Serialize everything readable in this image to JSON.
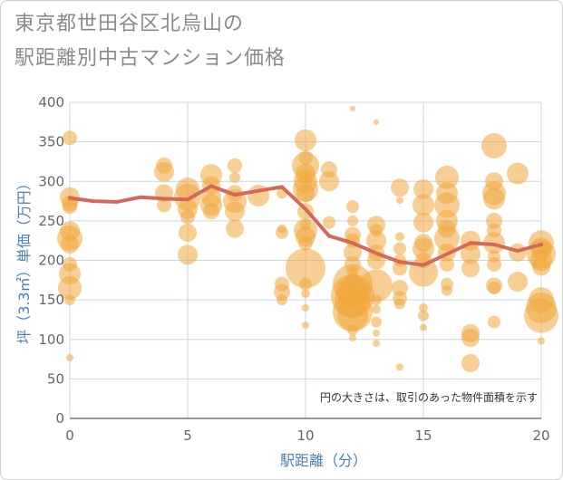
{
  "title_line1": "東京都世田谷区北烏山の",
  "title_line2": "駅距離別中古マンション価格",
  "note": "円の大きさは、取引のあった物件面積を示す",
  "colors": {
    "bubble": "#f0a73c",
    "line": "#d4695a",
    "grid": "#c9d7e6",
    "axis_label": "#4a7fb5"
  },
  "chart_data": {
    "type": "scatter",
    "xlabel": "駅距離（分）",
    "ylabel": "坪（3.3㎡）単価（万円）",
    "xlim": [
      0,
      20
    ],
    "ylim": [
      0,
      400
    ],
    "xticks": [
      0,
      5,
      10,
      15,
      20
    ],
    "yticks": [
      0,
      50,
      100,
      150,
      200,
      250,
      300,
      350,
      400
    ],
    "bubbles": [
      [
        0,
        355,
        8
      ],
      [
        0,
        280,
        11
      ],
      [
        0,
        272,
        9
      ],
      [
        0,
        268,
        8
      ],
      [
        0,
        237,
        11
      ],
      [
        0,
        228,
        14
      ],
      [
        0,
        220,
        10
      ],
      [
        0,
        195,
        8
      ],
      [
        0,
        183,
        12
      ],
      [
        0,
        165,
        13
      ],
      [
        0,
        150,
        6
      ],
      [
        0,
        77,
        4
      ],
      [
        4,
        320,
        9
      ],
      [
        4,
        312,
        11
      ],
      [
        4,
        285,
        10
      ],
      [
        4,
        270,
        8
      ],
      [
        5,
        290,
        13
      ],
      [
        5,
        280,
        15
      ],
      [
        5,
        265,
        11
      ],
      [
        5,
        255,
        8
      ],
      [
        5,
        235,
        10
      ],
      [
        5,
        207,
        11
      ],
      [
        6,
        308,
        12
      ],
      [
        6,
        295,
        10
      ],
      [
        6,
        280,
        11
      ],
      [
        6,
        270,
        12
      ],
      [
        6,
        262,
        9
      ],
      [
        7,
        320,
        8
      ],
      [
        7,
        305,
        6
      ],
      [
        7,
        285,
        9
      ],
      [
        7,
        275,
        13
      ],
      [
        7,
        262,
        11
      ],
      [
        7,
        240,
        10
      ],
      [
        8,
        282,
        12
      ],
      [
        9,
        285,
        6
      ],
      [
        9,
        240,
        5
      ],
      [
        9,
        235,
        7
      ],
      [
        9,
        170,
        8
      ],
      [
        9,
        160,
        9
      ],
      [
        9,
        150,
        6
      ],
      [
        10,
        352,
        12
      ],
      [
        10,
        330,
        8
      ],
      [
        10,
        320,
        15
      ],
      [
        10,
        310,
        11
      ],
      [
        10,
        300,
        13
      ],
      [
        10,
        290,
        14
      ],
      [
        10,
        285,
        10
      ],
      [
        10,
        262,
        9
      ],
      [
        10,
        245,
        6
      ],
      [
        10,
        238,
        13
      ],
      [
        10,
        230,
        11
      ],
      [
        10,
        222,
        8
      ],
      [
        10,
        190,
        22
      ],
      [
        10,
        170,
        7
      ],
      [
        10,
        158,
        5
      ],
      [
        10,
        140,
        4
      ],
      [
        10,
        118,
        4
      ],
      [
        11,
        315,
        9
      ],
      [
        11,
        300,
        11
      ],
      [
        11,
        248,
        7
      ],
      [
        12,
        392,
        3
      ],
      [
        12,
        268,
        7
      ],
      [
        12,
        250,
        6
      ],
      [
        12,
        232,
        9
      ],
      [
        12,
        225,
        8
      ],
      [
        12,
        210,
        10
      ],
      [
        12,
        195,
        9
      ],
      [
        12,
        185,
        6
      ],
      [
        12,
        175,
        8
      ],
      [
        12,
        170,
        22
      ],
      [
        12,
        160,
        18
      ],
      [
        12,
        155,
        24
      ],
      [
        12,
        150,
        20
      ],
      [
        12,
        135,
        22
      ],
      [
        12,
        130,
        17
      ],
      [
        12,
        112,
        6
      ],
      [
        12,
        102,
        4
      ],
      [
        13,
        375,
        3
      ],
      [
        13,
        245,
        10
      ],
      [
        13,
        238,
        7
      ],
      [
        13,
        225,
        11
      ],
      [
        13,
        210,
        9
      ],
      [
        13,
        200,
        10
      ],
      [
        13,
        168,
        18
      ],
      [
        13,
        150,
        6
      ],
      [
        13,
        138,
        5
      ],
      [
        13,
        122,
        6
      ],
      [
        13,
        108,
        4
      ],
      [
        13,
        95,
        4
      ],
      [
        14,
        292,
        10
      ],
      [
        14,
        276,
        4
      ],
      [
        14,
        230,
        5
      ],
      [
        14,
        215,
        7
      ],
      [
        14,
        200,
        7
      ],
      [
        14,
        190,
        8
      ],
      [
        14,
        165,
        9
      ],
      [
        14,
        152,
        8
      ],
      [
        14,
        145,
        6
      ],
      [
        14,
        65,
        4
      ],
      [
        15,
        290,
        11
      ],
      [
        15,
        270,
        12
      ],
      [
        15,
        248,
        11
      ],
      [
        15,
        222,
        10
      ],
      [
        15,
        215,
        12
      ],
      [
        15,
        200,
        9
      ],
      [
        15,
        185,
        16
      ],
      [
        15,
        140,
        5
      ],
      [
        15,
        130,
        6
      ],
      [
        15,
        115,
        4
      ],
      [
        16,
        305,
        13
      ],
      [
        16,
        285,
        12
      ],
      [
        16,
        270,
        14
      ],
      [
        16,
        250,
        12
      ],
      [
        16,
        240,
        10
      ],
      [
        16,
        228,
        14
      ],
      [
        16,
        210,
        10
      ],
      [
        16,
        195,
        8
      ],
      [
        16,
        170,
        7
      ],
      [
        16,
        162,
        6
      ],
      [
        17,
        225,
        11
      ],
      [
        17,
        208,
        11
      ],
      [
        17,
        190,
        10
      ],
      [
        17,
        108,
        10
      ],
      [
        17,
        102,
        10
      ],
      [
        17,
        70,
        10
      ],
      [
        18,
        345,
        14
      ],
      [
        18,
        300,
        10
      ],
      [
        18,
        285,
        13
      ],
      [
        18,
        278,
        12
      ],
      [
        18,
        250,
        9
      ],
      [
        18,
        238,
        8
      ],
      [
        18,
        222,
        12
      ],
      [
        18,
        205,
        7
      ],
      [
        18,
        195,
        8
      ],
      [
        18,
        168,
        9
      ],
      [
        18,
        165,
        7
      ],
      [
        18,
        122,
        7
      ],
      [
        19,
        310,
        12
      ],
      [
        19,
        210,
        10
      ],
      [
        19,
        173,
        11
      ],
      [
        20,
        222,
        14
      ],
      [
        20,
        215,
        12
      ],
      [
        20,
        208,
        16
      ],
      [
        20,
        200,
        12
      ],
      [
        20,
        192,
        10
      ],
      [
        20,
        150,
        14
      ],
      [
        20,
        140,
        17
      ],
      [
        20,
        130,
        19
      ],
      [
        20,
        98,
        4
      ]
    ],
    "series": [
      {
        "x": [
          0,
          1,
          2,
          3,
          4,
          5,
          6,
          7,
          8,
          9,
          10,
          11,
          12,
          13,
          14,
          15,
          16,
          17,
          18,
          19,
          20
        ],
        "values": [
          279,
          275,
          274,
          280,
          278,
          277,
          294,
          283,
          288,
          293,
          265,
          231,
          222,
          209,
          198,
          194,
          208,
          222,
          220,
          212,
          220
        ]
      }
    ]
  }
}
